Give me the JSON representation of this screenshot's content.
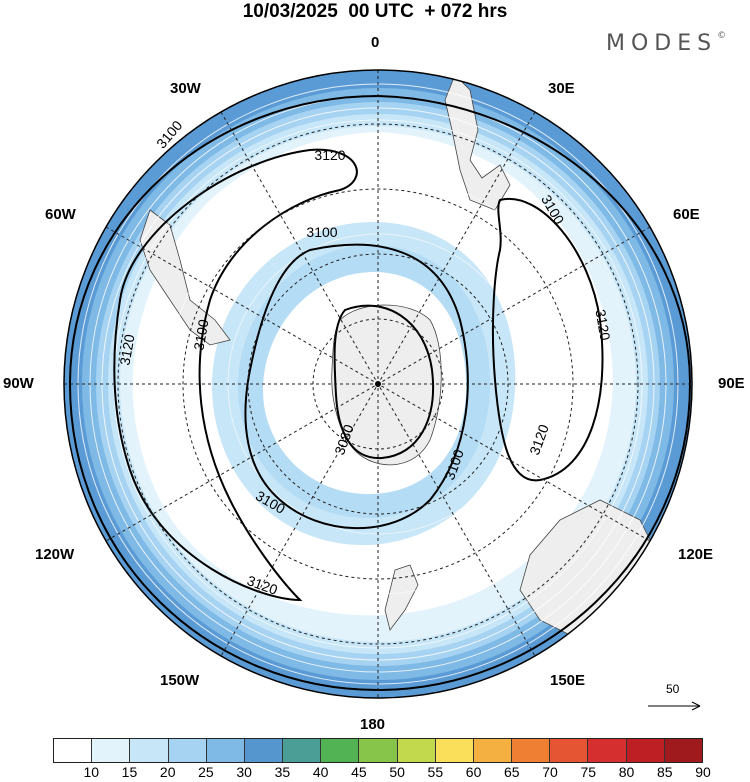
{
  "title": "10/03/2025  00 UTC  + 072 hrs",
  "brand": {
    "text": "MODES",
    "mark": "©"
  },
  "longitudes": {
    "top": "0",
    "bottom": "180",
    "left": "90W",
    "right": "90E",
    "w30": "30W",
    "e30": "30E",
    "w60": "60W",
    "e60": "60E",
    "w120": "120W",
    "e120": "120E",
    "w150": "150W",
    "e150": "150E"
  },
  "contour_labels": [
    "3100",
    "3120",
    "3100",
    "3100",
    "3120",
    "3120",
    "3100",
    "3080",
    "3100",
    "3120",
    "3120",
    "3100"
  ],
  "reference_vector": {
    "label": "50",
    "icon": "arrow-right-icon"
  },
  "colorbar": {
    "colors": [
      "#ffffff",
      "#e3f3fc",
      "#c7e6f8",
      "#a6d3f2",
      "#7fb9e6",
      "#5596cf",
      "#4a9e95",
      "#52b355",
      "#87c44a",
      "#c3d94d",
      "#f9df5a",
      "#f4b041",
      "#ef8033",
      "#e55533",
      "#d62f2f",
      "#be1f25",
      "#9e1a1c"
    ],
    "ticks": [
      "10",
      "15",
      "20",
      "25",
      "30",
      "35",
      "40",
      "45",
      "50",
      "55",
      "60",
      "65",
      "70",
      "75",
      "80",
      "85",
      "90"
    ]
  }
}
